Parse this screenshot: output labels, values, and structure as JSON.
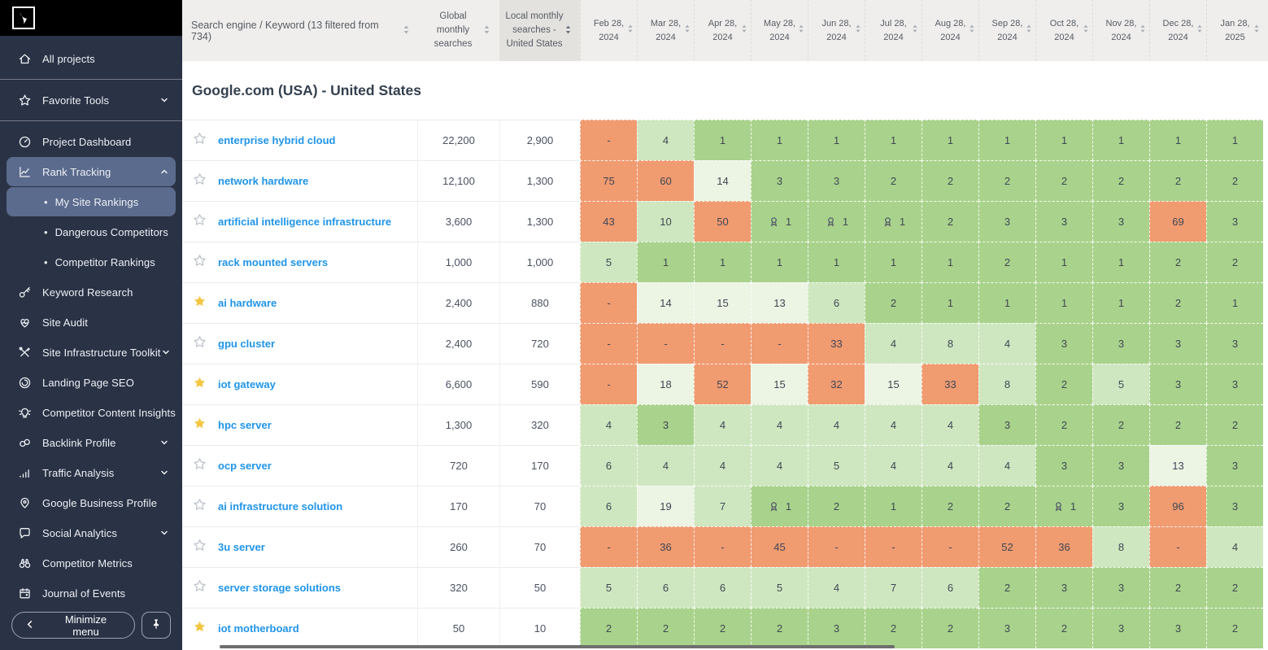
{
  "sidebar": {
    "items": [
      {
        "label": "All projects",
        "icon": "home-icon",
        "divider_after": true
      },
      {
        "label": "Favorite Tools",
        "icon": "star-icon",
        "chevron": "down",
        "divider_after": true
      },
      {
        "label": "Project Dashboard",
        "icon": "dashboard-icon"
      },
      {
        "label": "Rank Tracking",
        "icon": "rank-chart-icon",
        "chevron": "up",
        "active": true
      },
      {
        "label": "My Site Rankings",
        "sub": true,
        "selected": true
      },
      {
        "label": "Dangerous Competitors",
        "sub": true
      },
      {
        "label": "Competitor Rankings",
        "sub": true
      },
      {
        "label": "Keyword Research",
        "icon": "key-icon"
      },
      {
        "label": "Site Audit",
        "icon": "heart-icon"
      },
      {
        "label": "Site Infrastructure Toolkit",
        "icon": "tools-icon",
        "chevron": "down"
      },
      {
        "label": "Landing Page SEO",
        "icon": "gauge-icon"
      },
      {
        "label": "Competitor Content Insights",
        "icon": "bulb-icon"
      },
      {
        "label": "Backlink Profile",
        "icon": "links-icon",
        "chevron": "down"
      },
      {
        "label": "Traffic Analysis",
        "icon": "bars-icon",
        "chevron": "down"
      },
      {
        "label": "Google Business Profile",
        "icon": "location-pin-icon"
      },
      {
        "label": "Social Analytics",
        "icon": "chat-icon",
        "chevron": "down"
      },
      {
        "label": "Competitor Metrics",
        "icon": "binoculars-icon"
      },
      {
        "label": "Journal of Events",
        "icon": "calendar-icon"
      }
    ],
    "minimize_label": "Minimize menu"
  },
  "table": {
    "header": {
      "keyword_col": "Search engine / Keyword (13 filtered from 734)",
      "global_col": "Global monthly searches",
      "local_col": "Local monthly searches - United States",
      "months": [
        "Feb 28,|2024",
        "Mar 28,|2024",
        "Apr 28,|2024",
        "May 28,|2024",
        "Jun 28,|2024",
        "Jul 28,|2024",
        "Aug 28,|2024",
        "Sep 28,|2024",
        "Oct 28,|2024",
        "Nov 28,|2024",
        "Dec 28,|2024",
        "Jan 28,|2025"
      ]
    },
    "section_title": "Google.com (USA) - United States",
    "rows": [
      {
        "keyword": "enterprise hybrid cloud",
        "starred": false,
        "global": "22,200",
        "local": "2,900",
        "ranks": [
          "-",
          "4",
          "1",
          "1",
          "1",
          "1",
          "1",
          "1",
          "1",
          "1",
          "1",
          "1"
        ],
        "badge_cols": []
      },
      {
        "keyword": "network hardware",
        "starred": false,
        "global": "12,100",
        "local": "1,300",
        "ranks": [
          "75",
          "60",
          "14",
          "3",
          "3",
          "2",
          "2",
          "2",
          "2",
          "2",
          "2",
          "2"
        ],
        "badge_cols": []
      },
      {
        "keyword": "artificial intelligence infrastructure",
        "starred": false,
        "global": "3,600",
        "local": "1,300",
        "ranks": [
          "43",
          "10",
          "50",
          "1",
          "1",
          "1",
          "2",
          "3",
          "3",
          "3",
          "69",
          "3"
        ],
        "badge_cols": [
          3,
          4,
          5
        ]
      },
      {
        "keyword": "rack mounted servers",
        "starred": false,
        "global": "1,000",
        "local": "1,000",
        "ranks": [
          "5",
          "1",
          "1",
          "1",
          "1",
          "1",
          "1",
          "2",
          "1",
          "1",
          "2",
          "2"
        ],
        "badge_cols": []
      },
      {
        "keyword": "ai hardware",
        "starred": true,
        "global": "2,400",
        "local": "880",
        "ranks": [
          "-",
          "14",
          "15",
          "13",
          "6",
          "2",
          "1",
          "1",
          "1",
          "1",
          "2",
          "1"
        ],
        "badge_cols": []
      },
      {
        "keyword": "gpu cluster",
        "starred": false,
        "global": "2,400",
        "local": "720",
        "ranks": [
          "-",
          "-",
          "-",
          "-",
          "33",
          "4",
          "8",
          "4",
          "3",
          "3",
          "3",
          "3"
        ],
        "badge_cols": []
      },
      {
        "keyword": "iot gateway",
        "starred": true,
        "global": "6,600",
        "local": "590",
        "ranks": [
          "-",
          "18",
          "52",
          "15",
          "32",
          "15",
          "33",
          "8",
          "2",
          "5",
          "3",
          "3"
        ],
        "badge_cols": []
      },
      {
        "keyword": "hpc server",
        "starred": true,
        "global": "1,300",
        "local": "320",
        "ranks": [
          "4",
          "3",
          "4",
          "4",
          "4",
          "4",
          "4",
          "3",
          "2",
          "2",
          "2",
          "2"
        ],
        "badge_cols": []
      },
      {
        "keyword": "ocp server",
        "starred": false,
        "global": "720",
        "local": "170",
        "ranks": [
          "6",
          "4",
          "4",
          "4",
          "5",
          "4",
          "4",
          "4",
          "3",
          "3",
          "13",
          "3"
        ],
        "badge_cols": []
      },
      {
        "keyword": "ai infrastructure solution",
        "starred": false,
        "global": "170",
        "local": "70",
        "ranks": [
          "6",
          "19",
          "7",
          "1",
          "2",
          "1",
          "2",
          "2",
          "1",
          "3",
          "96",
          "3"
        ],
        "badge_cols": [
          3,
          8
        ]
      },
      {
        "keyword": "3u server",
        "starred": false,
        "global": "260",
        "local": "70",
        "ranks": [
          "-",
          "36",
          "-",
          "45",
          "-",
          "-",
          "-",
          "52",
          "36",
          "8",
          "-",
          "4"
        ],
        "badge_cols": []
      },
      {
        "keyword": "server storage solutions",
        "starred": false,
        "global": "320",
        "local": "50",
        "ranks": [
          "5",
          "6",
          "6",
          "5",
          "4",
          "7",
          "6",
          "2",
          "3",
          "3",
          "2",
          "2"
        ],
        "badge_cols": []
      },
      {
        "keyword": "iot motherboard",
        "starred": true,
        "global": "50",
        "local": "10",
        "ranks": [
          "2",
          "2",
          "2",
          "2",
          "3",
          "2",
          "2",
          "3",
          "2",
          "3",
          "3",
          "2"
        ],
        "badge_cols": []
      }
    ]
  },
  "colors": {
    "rank_top3": "#a9d38c",
    "rank_top10": "#cfe7c0",
    "rank_top20": "#ecf4e4",
    "rank_out": "#f19b71",
    "keyword_blue": "#2095e9",
    "star_gold": "#f5c642",
    "sidebar_bg": "#2a3245",
    "active_item_bg": "#5b6b8d"
  }
}
